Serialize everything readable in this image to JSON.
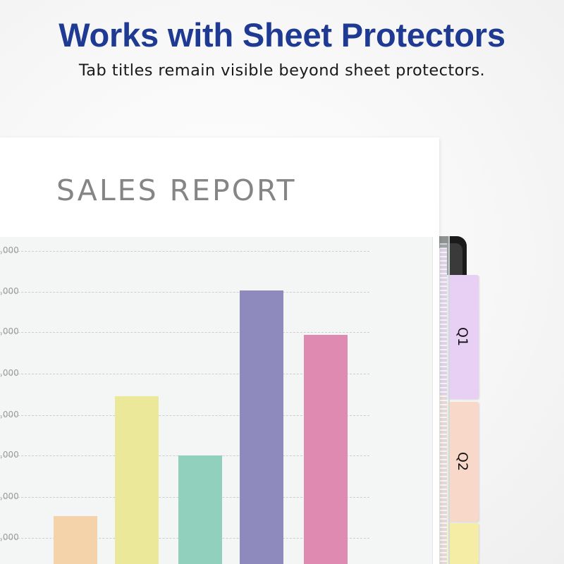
{
  "header": {
    "title": "Works with Sheet Protectors",
    "subtitle": "Tab titles remain visible beyond sheet protectors."
  },
  "report": {
    "title": "SALES REPORT",
    "tick_labels": [
      ",000",
      ",000",
      ",000",
      ",000",
      ",000",
      ",000",
      ",000",
      ",000"
    ]
  },
  "chart_data": {
    "type": "bar",
    "title": "SALES REPORT",
    "categories": [
      "",
      "",
      "",
      "",
      ""
    ],
    "values": [
      7.1,
      21.3,
      14.3,
      33.9,
      28.6
    ],
    "colors": [
      "#f4d2aa",
      "#ebe899",
      "#91d0bd",
      "#8e8abd",
      "#df8ab0"
    ],
    "ylim": [
      0,
      40
    ],
    "grid": true
  },
  "tabs": [
    {
      "label": "Q1",
      "color": "#e7d0f4"
    },
    {
      "label": "Q2",
      "color": "#f7d8c9"
    },
    {
      "label": "",
      "color": "#f5eca6"
    }
  ],
  "colors": {
    "headline": "#1f3a93"
  }
}
